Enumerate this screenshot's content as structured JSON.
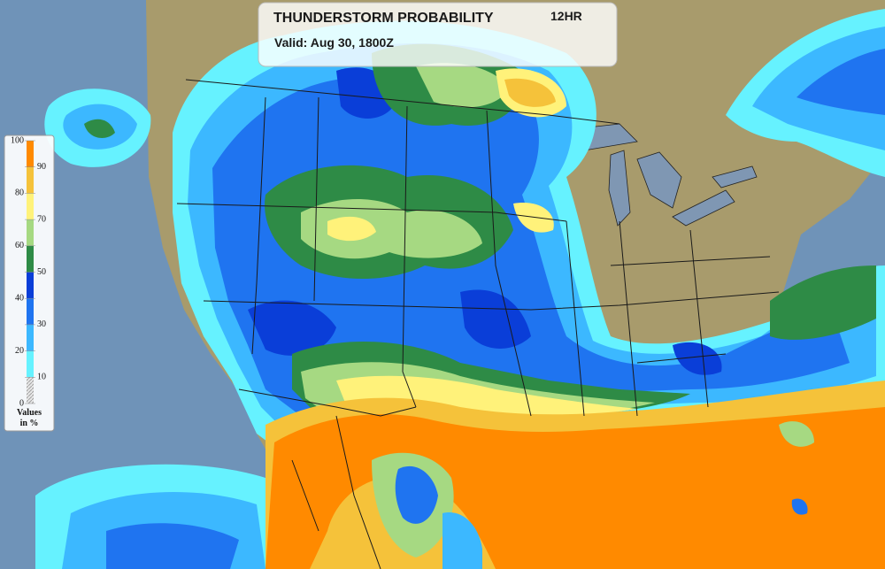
{
  "header": {
    "title": "THUNDERSTORM PROBABILITY",
    "period": "12HR",
    "valid": "Valid: Aug 30, 1800Z"
  },
  "legend": {
    "ticks": [
      0,
      10,
      20,
      30,
      40,
      50,
      60,
      70,
      80,
      90,
      100
    ],
    "colors": [
      "#dcdcdc",
      "#66f2ff",
      "#3cb8ff",
      "#1f74f0",
      "#0a3ed8",
      "#2e8b46",
      "#a6d982",
      "#fff27a",
      "#f5c23a",
      "#ff8a00"
    ],
    "caption": [
      "Values",
      "in %"
    ]
  }
}
